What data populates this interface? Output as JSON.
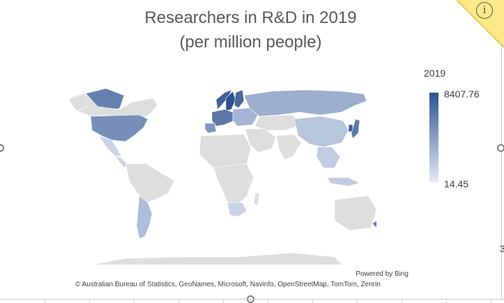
{
  "title": {
    "line1": "Researchers in R&D in 2019",
    "line2": "(per million people)"
  },
  "legend": {
    "title": "2019",
    "max_label": "8407.76",
    "min_label": "14.45",
    "max_value": 8407.76,
    "min_value": 14.45,
    "color_high": "#2f528f",
    "color_low": "#e4ebf7"
  },
  "no_data_color": "#dedede",
  "chart_data": {
    "type": "choropleth",
    "title": "Researchers in R&D in 2019 (per million people)",
    "legend_title": "2019",
    "range": [
      14.45,
      8407.76
    ],
    "regions": [
      {
        "region": "Greenland",
        "level": 0.7
      },
      {
        "region": "Canada",
        "level": null
      },
      {
        "region": "United States",
        "level": 0.6
      },
      {
        "region": "Mexico",
        "level": 0.15
      },
      {
        "region": "Argentina",
        "level": 0.3
      },
      {
        "region": "Brazil",
        "level": null
      },
      {
        "region": "Norway",
        "level": 0.9
      },
      {
        "region": "Sweden",
        "level": 1.0
      },
      {
        "region": "Finland",
        "level": 0.85
      },
      {
        "region": "Western Europe",
        "level": 0.75
      },
      {
        "region": "Iberia",
        "level": 0.55
      },
      {
        "region": "Eastern Europe",
        "level": 0.35
      },
      {
        "region": "Russia",
        "level": 0.4
      },
      {
        "region": "China",
        "level": 0.25
      },
      {
        "region": "Japan",
        "level": 0.75
      },
      {
        "region": "South Korea",
        "level": 0.9
      },
      {
        "region": "South Africa",
        "level": 0.15
      },
      {
        "region": "New Zealand",
        "level": 0.7
      },
      {
        "region": "Southeast Asia",
        "level": 0.2
      }
    ]
  },
  "attribution": {
    "powered": "Powered by Bing",
    "credits": "© Australian Bureau of Statistics, GeoNames, Microsoft, Navinfo, OpenStreetMap, TomTom, Zenrin"
  },
  "edge_fragment": "3",
  "icons": {
    "info": "info-icon"
  }
}
